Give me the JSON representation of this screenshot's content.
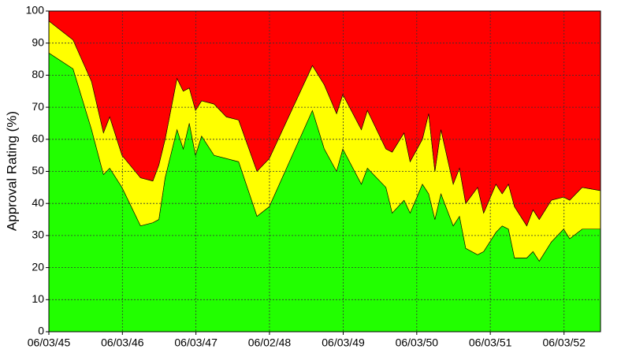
{
  "chart_data": {
    "type": "stacked-area",
    "y_label": "Approval Rating (%)",
    "x": [
      "1945-06",
      "1945-10",
      "1946-01",
      "1946-03",
      "1946-04",
      "1946-06",
      "1946-09",
      "1946-11",
      "1946-12",
      "1947-01",
      "1947-03",
      "1947-04",
      "1947-05",
      "1947-06",
      "1947-07",
      "1947-09",
      "1947-11",
      "1948-01",
      "1948-04",
      "1948-06",
      "1949-01",
      "1949-03",
      "1949-05",
      "1949-06",
      "1949-09",
      "1949-10",
      "1950-01",
      "1950-02",
      "1950-04",
      "1950-05",
      "1950-07",
      "1950-08",
      "1950-09",
      "1950-10",
      "1950-12",
      "1951-01",
      "1951-02",
      "1951-04",
      "1951-05",
      "1951-07",
      "1951-08",
      "1951-09",
      "1951-10",
      "1951-12",
      "1952-01",
      "1952-02",
      "1952-04",
      "1952-06",
      "1952-07",
      "1952-09",
      "1952-12"
    ],
    "series": [
      {
        "color": "#22ff00",
        "values": [
          87,
          82,
          63,
          49,
          51,
          45,
          33,
          34,
          35,
          48,
          63,
          57,
          65,
          55,
          61,
          55,
          54,
          53,
          36,
          39,
          69,
          57,
          50,
          57,
          46,
          51,
          45,
          37,
          41,
          37,
          46,
          43,
          35,
          43,
          33,
          36,
          26,
          24,
          25,
          31,
          33,
          32,
          23,
          23,
          25,
          22,
          28,
          32,
          29,
          32,
          32
        ]
      },
      {
        "color": "#ffff00",
        "values": [
          10,
          9,
          15,
          13,
          16,
          10,
          15,
          13,
          17,
          12,
          16,
          18,
          11,
          14,
          11,
          16,
          13,
          13,
          14,
          15,
          14,
          20,
          18,
          17,
          17,
          18,
          12,
          19,
          21,
          16,
          14,
          25,
          15,
          20,
          13,
          15,
          14,
          21,
          12,
          15,
          10,
          14,
          16,
          10,
          13,
          13,
          13,
          10,
          12,
          13,
          12
        ]
      },
      {
        "color": "#ff0000",
        "values": [
          3,
          9,
          22,
          38,
          33,
          45,
          52,
          53,
          48,
          40,
          21,
          25,
          24,
          31,
          28,
          29,
          33,
          34,
          50,
          46,
          17,
          23,
          32,
          26,
          37,
          31,
          43,
          44,
          38,
          47,
          40,
          32,
          50,
          37,
          54,
          49,
          60,
          55,
          63,
          54,
          57,
          54,
          61,
          67,
          62,
          65,
          59,
          58,
          59,
          55,
          56
        ]
      }
    ],
    "xlim": [
      "1945-06-03",
      "1952-12"
    ],
    "xticks": [
      {
        "value": "1945-06-03",
        "label": "06/03/45"
      },
      {
        "value": "1946-06-03",
        "label": "06/03/46"
      },
      {
        "value": "1947-06-03",
        "label": "06/03/47"
      },
      {
        "value": "1948-06-02",
        "label": "06/02/48"
      },
      {
        "value": "1949-06-03",
        "label": "06/03/49"
      },
      {
        "value": "1950-06-03",
        "label": "06/03/50"
      },
      {
        "value": "1951-06-03",
        "label": "06/03/51"
      },
      {
        "value": "1952-06-03",
        "label": "06/03/52"
      }
    ],
    "ylim": [
      0,
      100
    ],
    "yticks": [
      0,
      10,
      20,
      30,
      40,
      50,
      60,
      70,
      80,
      90,
      100
    ],
    "grid": true
  }
}
